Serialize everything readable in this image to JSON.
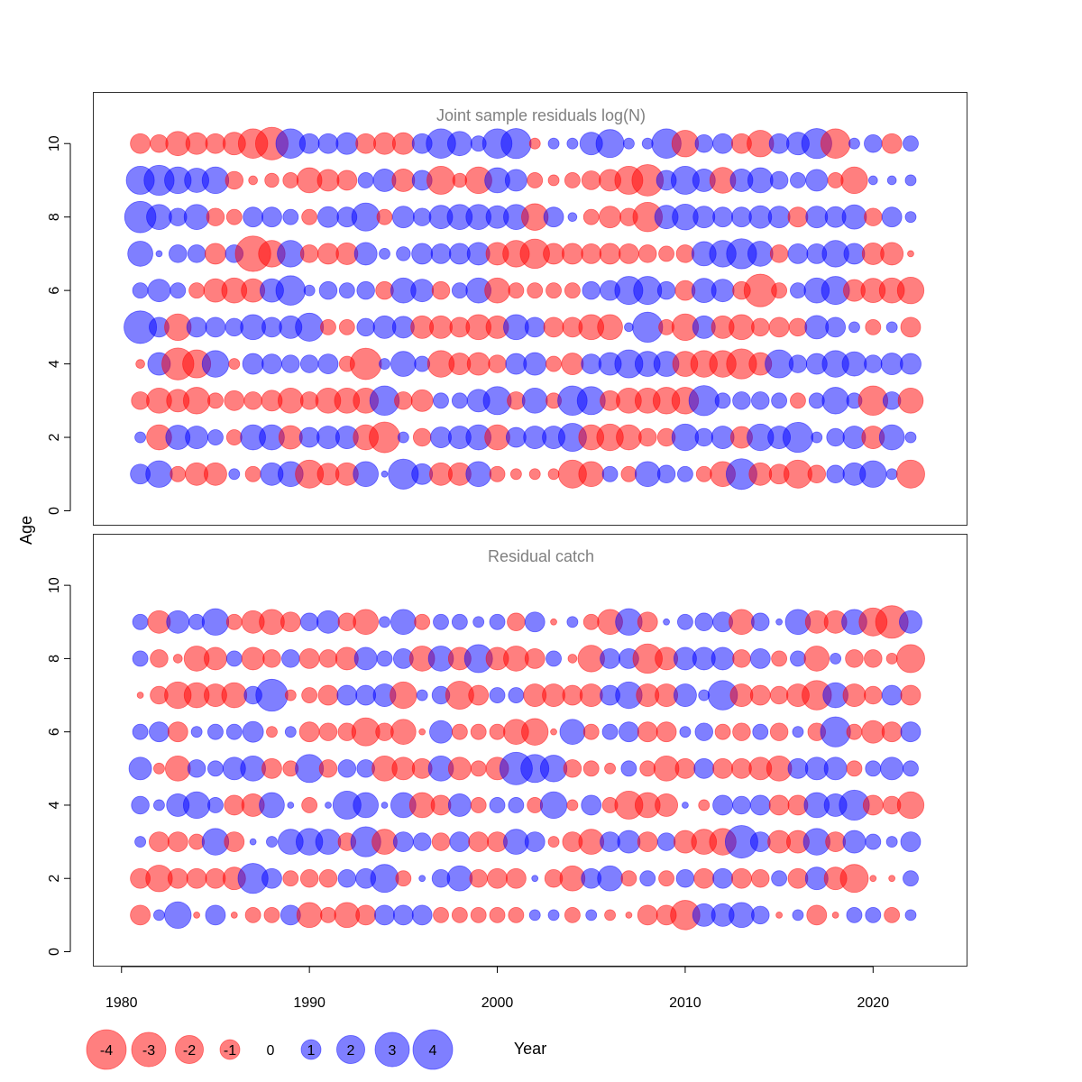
{
  "chart_data": {
    "type": "scatter",
    "subtype": "bubble",
    "xlabel": "Year",
    "ylabel": "Age",
    "xlim": [
      1978.5,
      2025
    ],
    "x_ticks": [
      1980,
      1990,
      2000,
      2010,
      2020
    ],
    "colors": {
      "negative": "#ff0000",
      "positive": "#0000ff",
      "opacity": 0.5
    },
    "legend": {
      "placement": "bottom-left",
      "values": [
        -4,
        -3,
        -2,
        -1,
        0,
        1,
        2,
        3,
        4
      ],
      "labels": [
        "-4",
        "-3",
        "-2",
        "-1",
        "0",
        "1",
        "2",
        "3",
        "4"
      ]
    },
    "panels": [
      {
        "title": "Joint sample residuals log(N)",
        "ylim": [
          0,
          11
        ],
        "y_ticks": [
          0,
          2,
          4,
          6,
          8,
          10
        ],
        "y_tick_labels": [
          "0",
          "2",
          "4",
          "6",
          "8",
          "10"
        ],
        "years": [
          1981,
          2022
        ],
        "ages": [
          1,
          2,
          3,
          4,
          5,
          6,
          7,
          8,
          9,
          10
        ],
        "residuals": {
          "10": [
            -1.0,
            -0.8,
            -1.5,
            -1.2,
            -1.0,
            -1.3,
            -2.2,
            -2.7,
            2.2,
            1.0,
            1.0,
            1.2,
            -1.0,
            -1.2,
            -1.2,
            1.0,
            2.2,
            1.5,
            0.6,
            2.2,
            2.3,
            -0.3,
            0.3,
            0.3,
            1.3,
            2.0,
            0.3,
            0.3,
            2.2,
            -1.8,
            0.8,
            1.0,
            -1.0,
            -1.8,
            1.0,
            1.3,
            2.3,
            -2.2,
            0.3,
            0.8,
            -1.0,
            0.6
          ],
          "9": [
            2.0,
            2.3,
            1.8,
            1.5,
            1.8,
            -0.8,
            -0.2,
            -0.5,
            -0.6,
            -1.6,
            -1.2,
            -1.0,
            0.6,
            1.3,
            -1.3,
            1.0,
            -2.0,
            -0.5,
            -1.8,
            1.6,
            1.2,
            -0.6,
            -0.3,
            -0.6,
            -0.9,
            -1.2,
            -2.0,
            -2.5,
            1.0,
            2.0,
            1.3,
            -1.7,
            1.3,
            1.6,
            0.8,
            0.6,
            1.2,
            -0.6,
            -1.8,
            0.2,
            0.2,
            0.3
          ],
          "8": [
            2.5,
            1.6,
            0.8,
            1.6,
            -0.8,
            -0.6,
            1.0,
            1.0,
            0.6,
            -0.6,
            1.1,
            1.0,
            2.0,
            -0.6,
            1.2,
            0.8,
            1.4,
            1.6,
            1.6,
            1.3,
            1.6,
            -1.8,
            1.0,
            0.2,
            -0.6,
            -1.2,
            -0.8,
            -2.2,
            1.4,
            1.7,
            1.2,
            1.0,
            1.0,
            1.3,
            1.2,
            -1.0,
            1.2,
            1.1,
            1.5,
            -0.8,
            1.0,
            0.3
          ],
          "7": [
            1.6,
            0.1,
            0.8,
            0.8,
            -1.1,
            0.8,
            -3.2,
            -1.8,
            1.8,
            -0.8,
            -1.1,
            -1.2,
            1.3,
            0.3,
            0.5,
            1.1,
            1.0,
            1.1,
            1.3,
            -1.3,
            -1.8,
            -2.2,
            -1.1,
            -1.1,
            -1.0,
            -1.1,
            -1.0,
            -0.8,
            -0.6,
            -0.8,
            1.5,
            1.8,
            2.3,
            1.6,
            -0.8,
            1.0,
            1.0,
            1.8,
            1.1,
            -1.2,
            -1.3,
            -0.1
          ],
          "6": [
            0.6,
            1.3,
            0.6,
            -0.6,
            -1.4,
            -1.6,
            -1.4,
            1.4,
            2.2,
            0.3,
            0.8,
            0.6,
            0.8,
            -0.8,
            1.6,
            1.3,
            -0.8,
            0.6,
            1.6,
            -1.6,
            -0.6,
            -0.6,
            -0.6,
            -0.6,
            0.8,
            1.0,
            2.0,
            2.0,
            0.8,
            -1.0,
            1.5,
            1.3,
            -0.8,
            -2.7,
            -0.6,
            0.6,
            1.6,
            2.0,
            -1.2,
            -1.5,
            -1.6,
            -1.8
          ],
          "5": [
            2.7,
            1.0,
            -1.8,
            1.0,
            1.0,
            0.8,
            1.6,
            1.0,
            1.3,
            2.0,
            -0.6,
            -0.6,
            0.8,
            1.3,
            1.2,
            -1.3,
            -1.3,
            -1.0,
            -1.6,
            -1.3,
            1.6,
            1.0,
            -1.0,
            -1.0,
            -1.6,
            -1.6,
            0.2,
            2.3,
            -0.6,
            -1.8,
            1.3,
            -1.3,
            -1.6,
            -0.8,
            -1.0,
            -0.8,
            1.4,
            1.0,
            0.3,
            -0.6,
            0.3,
            -1.0
          ],
          "4": [
            -0.2,
            1.3,
            -2.6,
            -2.0,
            1.8,
            -0.3,
            1.1,
            1.0,
            0.8,
            0.8,
            1.0,
            -0.6,
            -2.5,
            0.3,
            1.6,
            0.6,
            -1.8,
            -1.2,
            -1.3,
            -0.8,
            1.1,
            1.3,
            -0.6,
            -1.2,
            1.0,
            1.3,
            2.0,
            1.6,
            1.6,
            -1.6,
            -1.8,
            -1.8,
            -2.3,
            -1.3,
            2.0,
            0.8,
            1.1,
            1.8,
            1.5,
            0.8,
            1.2,
            1.1
          ],
          "3": [
            -0.8,
            -1.6,
            -1.3,
            -1.8,
            -0.6,
            -1.0,
            -0.8,
            -1.1,
            -1.6,
            -0.8,
            -1.6,
            -1.6,
            -1.6,
            2.2,
            -0.8,
            -1.2,
            0.6,
            0.6,
            1.3,
            2.0,
            -0.8,
            1.6,
            -0.6,
            2.2,
            2.0,
            -1.0,
            -1.6,
            -1.6,
            -1.8,
            -1.8,
            2.3,
            0.6,
            0.8,
            0.8,
            0.6,
            -0.6,
            0.6,
            1.8,
            0.6,
            -2.2,
            0.8,
            -1.6
          ],
          "2": [
            0.3,
            -1.6,
            1.5,
            1.3,
            0.6,
            -0.6,
            1.6,
            1.6,
            -1.4,
            1.0,
            1.3,
            1.3,
            -1.6,
            -2.4,
            0.3,
            -0.8,
            1.1,
            1.3,
            1.6,
            -1.6,
            1.0,
            1.3,
            1.3,
            2.0,
            -1.6,
            -1.8,
            -1.6,
            -0.8,
            -0.8,
            1.8,
            0.8,
            1.3,
            -1.2,
            1.8,
            1.3,
            2.3,
            0.3,
            0.8,
            1.3,
            -1.3,
            1.6,
            0.3
          ],
          "1": [
            1.0,
            1.8,
            -0.6,
            -1.3,
            -1.3,
            0.3,
            -0.6,
            1.3,
            1.6,
            -2.0,
            -1.2,
            -1.3,
            1.6,
            0.1,
            2.3,
            1.1,
            -1.3,
            -1.3,
            1.6,
            -0.6,
            -0.3,
            -0.3,
            -0.3,
            -2.0,
            -1.6,
            0.6,
            -0.6,
            1.6,
            0.8,
            0.6,
            -0.6,
            -1.6,
            2.4,
            -1.3,
            -1.0,
            -2.0,
            -0.8,
            0.8,
            1.3,
            1.8,
            0.3,
            -2.0
          ]
        }
      },
      {
        "title": "Residual catch",
        "ylim": [
          0,
          11
        ],
        "y_ticks": [
          0,
          2,
          4,
          6,
          8,
          10
        ],
        "y_tick_labels": [
          "0",
          "2",
          "4",
          "6",
          "8",
          "10"
        ],
        "years": [
          1981,
          2022
        ],
        "ages": [
          1,
          2,
          3,
          4,
          5,
          6,
          7,
          8,
          9
        ],
        "residuals": {
          "9": [
            0.6,
            -1.3,
            1.3,
            0.6,
            1.8,
            -0.6,
            -1.3,
            -1.6,
            -1.0,
            0.8,
            1.3,
            -0.8,
            -1.6,
            0.3,
            1.6,
            -0.6,
            0.6,
            0.6,
            0.3,
            0.6,
            -0.8,
            1.0,
            -0.1,
            0.3,
            -0.6,
            -1.6,
            1.8,
            -1.0,
            0.1,
            0.6,
            0.8,
            1.0,
            -1.6,
            0.8,
            0.1,
            1.6,
            -1.3,
            -1.3,
            1.6,
            -2.0,
            -2.7,
            1.3
          ],
          "8": [
            0.6,
            -0.8,
            -0.2,
            -1.6,
            -1.3,
            0.6,
            -1.3,
            -0.8,
            0.8,
            -1.0,
            -0.8,
            -1.3,
            1.3,
            0.6,
            1.0,
            -1.6,
            1.6,
            -1.3,
            2.0,
            -1.3,
            -1.6,
            -1.0,
            0.6,
            -0.2,
            -1.8,
            1.0,
            1.0,
            -2.2,
            -1.3,
            1.3,
            1.3,
            1.3,
            -0.8,
            1.0,
            -0.6,
            0.6,
            -1.6,
            0.3,
            -0.8,
            -0.8,
            -0.3,
            -2.0
          ],
          "7": [
            -0.1,
            -0.8,
            -1.8,
            -1.6,
            -1.3,
            -1.6,
            0.8,
            2.6,
            -0.3,
            -0.6,
            -1.0,
            1.0,
            1.0,
            1.3,
            -1.8,
            0.3,
            0.8,
            -2.0,
            -1.0,
            0.6,
            0.6,
            -1.3,
            -1.3,
            -1.0,
            -1.3,
            1.0,
            1.8,
            -1.3,
            -1.3,
            1.3,
            0.3,
            2.2,
            -1.3,
            -1.0,
            -0.8,
            -1.3,
            -2.2,
            1.6,
            -1.3,
            -0.8,
            1.0,
            -1.0
          ],
          "6": [
            0.6,
            1.0,
            -1.0,
            0.3,
            0.6,
            0.6,
            1.1,
            -0.3,
            0.3,
            -1.0,
            -0.8,
            -0.8,
            -2.0,
            -0.8,
            -1.6,
            -0.1,
            1.3,
            -0.6,
            -0.6,
            -0.6,
            -1.6,
            -1.8,
            -0.1,
            1.6,
            -0.6,
            0.6,
            1.0,
            -1.0,
            -1.0,
            0.3,
            0.8,
            -0.6,
            -0.8,
            0.6,
            -0.8,
            0.3,
            -0.8,
            2.3,
            -0.6,
            -1.3,
            -1.0,
            1.0
          ],
          "5": [
            1.3,
            -0.3,
            -1.6,
            0.8,
            0.6,
            1.3,
            1.6,
            -1.0,
            -0.6,
            2.0,
            -0.8,
            0.8,
            0.8,
            -1.6,
            -1.3,
            -1.0,
            1.6,
            -1.3,
            -0.6,
            -1.3,
            2.7,
            2.0,
            1.8,
            -0.8,
            -0.6,
            -0.3,
            0.6,
            -0.6,
            -1.6,
            -1.0,
            1.0,
            -1.0,
            -1.0,
            -1.3,
            -1.6,
            1.0,
            1.3,
            1.3,
            -0.6,
            0.6,
            1.3,
            0.6
          ],
          "4": [
            0.8,
            0.3,
            1.3,
            1.8,
            0.6,
            -1.0,
            -1.3,
            1.6,
            0.1,
            -0.6,
            0.1,
            2.0,
            1.6,
            0.1,
            1.6,
            -1.6,
            -1.0,
            1.3,
            -0.6,
            0.6,
            0.6,
            -0.6,
            1.8,
            -0.3,
            1.0,
            -0.6,
            -2.0,
            -1.6,
            -1.3,
            0.1,
            -0.3,
            1.0,
            0.8,
            1.0,
            -1.0,
            -1.0,
            1.6,
            1.3,
            2.3,
            -1.0,
            -0.8,
            -1.8
          ],
          "3": [
            0.3,
            -1.0,
            -1.0,
            -0.6,
            1.8,
            -1.0,
            0.1,
            0.3,
            1.6,
            1.8,
            1.6,
            -0.8,
            2.3,
            -1.6,
            1.0,
            0.8,
            -0.8,
            1.0,
            -1.0,
            -1.0,
            1.6,
            1.0,
            -0.3,
            -1.0,
            -1.6,
            1.0,
            1.3,
            -1.0,
            0.8,
            -1.3,
            -1.6,
            -1.8,
            2.7,
            1.0,
            -1.3,
            -1.3,
            1.8,
            -1.0,
            1.3,
            0.6,
            0.3,
            1.0
          ],
          "2": [
            -1.0,
            -1.8,
            -1.0,
            -1.0,
            -1.0,
            -1.3,
            2.3,
            1.0,
            -0.6,
            -0.8,
            -0.8,
            0.8,
            1.0,
            2.0,
            -0.6,
            0.1,
            0.8,
            1.6,
            -0.8,
            -1.0,
            -1.0,
            0.1,
            -0.8,
            -1.6,
            1.0,
            1.6,
            -0.6,
            0.6,
            -0.6,
            0.8,
            -1.0,
            1.0,
            -1.0,
            -0.8,
            0.6,
            -1.0,
            1.3,
            -1.3,
            -2.0,
            -0.1,
            -0.1,
            0.6
          ],
          "1": [
            -1.0,
            0.3,
            1.8,
            -0.1,
            1.0,
            -0.1,
            -0.6,
            -0.6,
            1.0,
            -1.6,
            -0.6,
            -1.6,
            -1.0,
            1.0,
            1.0,
            1.0,
            -0.6,
            -0.6,
            -0.6,
            -0.6,
            -0.6,
            0.3,
            0.3,
            -0.6,
            0.3,
            -0.3,
            -0.1,
            -1.0,
            -1.0,
            -2.2,
            1.3,
            1.3,
            1.6,
            0.8,
            -0.1,
            0.3,
            -1.0,
            -0.1,
            0.6,
            0.6,
            -0.6,
            0.3
          ]
        }
      }
    ]
  }
}
